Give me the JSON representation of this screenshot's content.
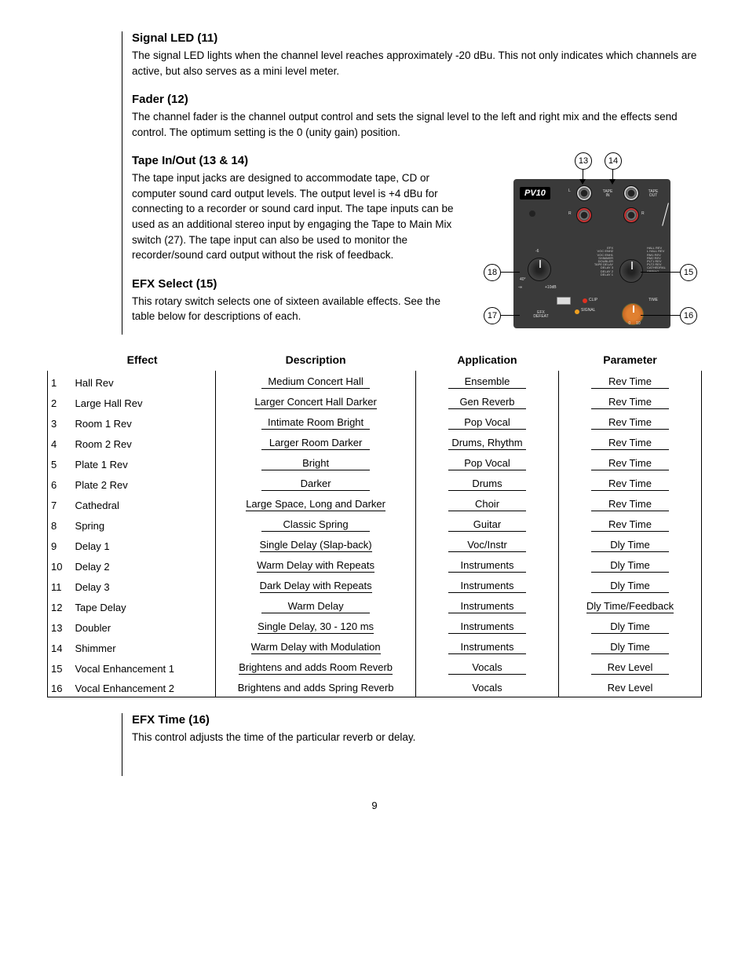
{
  "page_number": "9",
  "sections": {
    "signal_led": {
      "heading": "Signal LED (11)",
      "body": "The signal LED lights when the channel level reaches approximately -20 dBu. This not only indicates which channels are active, but also serves as a mini level meter."
    },
    "fader": {
      "heading": "Fader (12)",
      "body": "The channel fader is the channel output control and sets the signal level to the left and right mix and the effects send control. The optimum setting is the 0 (unity gain) position."
    },
    "tape": {
      "heading": "Tape In/Out (13 & 14)",
      "body": "The tape input jacks are designed to accommodate tape, CD or computer sound card output levels. The output level is +4 dBu for connecting to a recorder or sound card input. The tape inputs can be used as an additional stereo input by engaging the Tape to Main Mix switch (27). The tape input can also be used to monitor the recorder/sound card output without the risk of feedback."
    },
    "efx_select": {
      "heading": "EFX Select (15)",
      "body": "This rotary switch selects one of sixteen available effects. See the table below for descriptions of each."
    },
    "efx_time": {
      "heading": "EFX Time (16)",
      "body": "This control adjusts the time of the particular reverb or delay."
    }
  },
  "diagram": {
    "logo": "PV10",
    "callouts": {
      "c13": "13",
      "c14": "14",
      "c15": "15",
      "c16": "16",
      "c17": "17",
      "c18": "18"
    },
    "labels": {
      "tape_in": "TAPE\nIN",
      "tape_out": "TAPE\nOUT",
      "clip": "CLIP",
      "signal": "SIGNAL",
      "efx_defeat": "EFX\nDEFEAT",
      "time": "TIME",
      "scale_left_top": "40°",
      "scale_left_bot": "-∞",
      "scale_left_mid": "-6",
      "scale_right_top": "+10dB",
      "efx_left": "EFX\nVOC ENH2\nVOC ENH1\nSHIMMER\nDOUBLER\nTAPE DELAY\nDELAY 3\nDELAY 2\nDELAY 1",
      "efx_right": "HALL REV\nL HALL REV\nRM1 REV\nRM2 REV\nPLT1 REV\nPLT2 REV\nCATHEDRAL\nSPRING",
      "knob_scale": "0     10"
    }
  },
  "table": {
    "headers": {
      "num": "",
      "effect": "Effect",
      "description": "Description",
      "application": "Application",
      "parameter": "Parameter"
    },
    "rows": [
      {
        "num": "1",
        "effect": "Hall Rev",
        "description": "Medium Concert Hall",
        "application": "Ensemble",
        "parameter": "Rev Time"
      },
      {
        "num": "2",
        "effect": "Large Hall Rev",
        "description": "Larger Concert Hall Darker",
        "application": "Gen Reverb",
        "parameter": "Rev Time"
      },
      {
        "num": "3",
        "effect": "Room 1 Rev",
        "description": "Intimate Room Bright",
        "application": "Pop Vocal",
        "parameter": "Rev Time"
      },
      {
        "num": "4",
        "effect": "Room 2 Rev",
        "description": "Larger Room Darker",
        "application": "Drums, Rhythm",
        "parameter": "Rev Time"
      },
      {
        "num": "5",
        "effect": "Plate 1 Rev",
        "description": "Bright",
        "application": "Pop Vocal",
        "parameter": "Rev Time"
      },
      {
        "num": "6",
        "effect": "Plate 2 Rev",
        "description": "Darker",
        "application": "Drums",
        "parameter": "Rev Time"
      },
      {
        "num": "7",
        "effect": "Cathedral",
        "description": "Large Space, Long and Darker",
        "application": "Choir",
        "parameter": "Rev Time"
      },
      {
        "num": "8",
        "effect": "Spring",
        "description": "Classic Spring",
        "application": "Guitar",
        "parameter": "Rev Time"
      },
      {
        "num": "9",
        "effect": "Delay 1",
        "description": "Single Delay (Slap-back)",
        "application": "Voc/Instr",
        "parameter": "Dly Time"
      },
      {
        "num": "10",
        "effect": "Delay 2",
        "description": "Warm Delay with Repeats",
        "application": "Instruments",
        "parameter": "Dly Time"
      },
      {
        "num": "11",
        "effect": "Delay 3",
        "description": "Dark Delay with Repeats",
        "application": "Instruments",
        "parameter": "Dly Time"
      },
      {
        "num": "12",
        "effect": "Tape Delay",
        "description": "Warm Delay",
        "application": "Instruments",
        "parameter": "Dly Time/Feedback"
      },
      {
        "num": "13",
        "effect": "Doubler",
        "description": "Single Delay, 30 - 120 ms",
        "application": "Instruments",
        "parameter": "Dly Time"
      },
      {
        "num": "14",
        "effect": "Shimmer",
        "description": "Warm Delay with Modulation",
        "application": "Instruments",
        "parameter": "Dly Time"
      },
      {
        "num": "15",
        "effect": "Vocal Enhancement 1",
        "description": "Brightens and adds Room Reverb",
        "application": "Vocals",
        "parameter": "Rev Level"
      },
      {
        "num": "16",
        "effect": "Vocal Enhancement 2",
        "description": "Brightens and adds Spring Reverb",
        "application": "Vocals",
        "parameter": "Rev Level"
      }
    ]
  }
}
